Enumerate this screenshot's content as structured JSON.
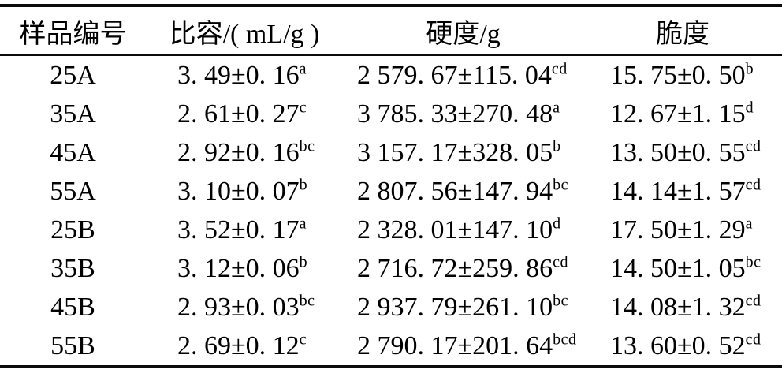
{
  "table": {
    "description": "质构与比容测定结果三线表",
    "columns": [
      {
        "label": "样品编号"
      },
      {
        "label": "比容/( mL/g )"
      },
      {
        "label": "硬度/g"
      },
      {
        "label": "脆度"
      }
    ],
    "rows": [
      {
        "cells": [
          {
            "text": "25A"
          },
          {
            "text": "3. 49±0. 16",
            "sup": "a"
          },
          {
            "text": "2 579. 67±115. 04",
            "sup": "cd"
          },
          {
            "text": "15. 75±0. 50",
            "sup": "b"
          }
        ]
      },
      {
        "cells": [
          {
            "text": "35A"
          },
          {
            "text": "2. 61±0. 27",
            "sup": "c"
          },
          {
            "text": "3 785. 33±270. 48",
            "sup": "a"
          },
          {
            "text": "12. 67±1. 15",
            "sup": "d"
          }
        ]
      },
      {
        "cells": [
          {
            "text": "45A"
          },
          {
            "text": "2. 92±0. 16",
            "sup": "bc"
          },
          {
            "text": "3 157. 17±328. 05",
            "sup": "b"
          },
          {
            "text": "13. 50±0. 55",
            "sup": "cd"
          }
        ]
      },
      {
        "cells": [
          {
            "text": "55A"
          },
          {
            "text": "3. 10±0. 07",
            "sup": "b"
          },
          {
            "text": "2 807. 56±147. 94",
            "sup": "bc"
          },
          {
            "text": "14. 14±1. 57",
            "sup": "cd"
          }
        ]
      },
      {
        "cells": [
          {
            "text": "25B"
          },
          {
            "text": "3. 52±0. 17",
            "sup": "a"
          },
          {
            "text": "2 328. 01±147. 10",
            "sup": "d"
          },
          {
            "text": "17. 50±1. 29",
            "sup": "a"
          }
        ]
      },
      {
        "cells": [
          {
            "text": "35B"
          },
          {
            "text": "3. 12±0. 06",
            "sup": "b"
          },
          {
            "text": "2 716. 72±259. 86",
            "sup": "cd"
          },
          {
            "text": "14. 50±1. 05",
            "sup": "bc"
          }
        ]
      },
      {
        "cells": [
          {
            "text": "45B"
          },
          {
            "text": "2. 93±0. 03",
            "sup": "bc"
          },
          {
            "text": "2 937. 79±261. 10",
            "sup": "bc"
          },
          {
            "text": "14. 08±1. 32",
            "sup": "cd"
          }
        ]
      },
      {
        "cells": [
          {
            "text": "55B"
          },
          {
            "text": "2. 69±0. 12",
            "sup": "c"
          },
          {
            "text": "2 790. 17±201. 64",
            "sup": "bcd"
          },
          {
            "text": "13. 60±0. 52",
            "sup": "cd"
          }
        ]
      }
    ]
  }
}
